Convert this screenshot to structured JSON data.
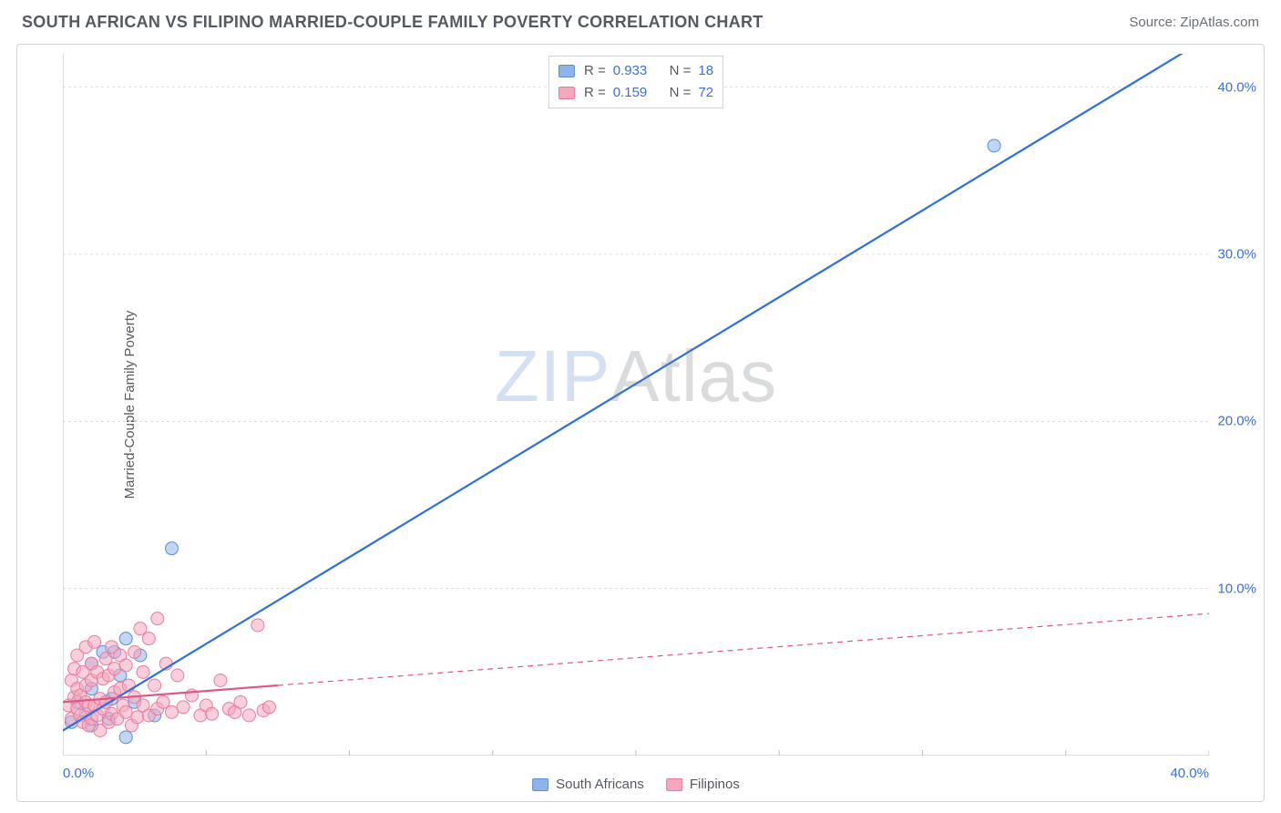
{
  "header": {
    "title": "SOUTH AFRICAN VS FILIPINO MARRIED-COUPLE FAMILY POVERTY CORRELATION CHART",
    "source_prefix": "Source: ",
    "source_name": "ZipAtlas.com"
  },
  "watermark": {
    "part1": "ZIP",
    "part2": "Atlas"
  },
  "chart": {
    "type": "scatter",
    "y_axis_label": "Married-Couple Family Poverty",
    "background_color": "#ffffff",
    "border_color": "#cfd3d8",
    "grid_color": "#d9dde1",
    "axis_color": "#b9bec4",
    "label_color": "#3a6fd8",
    "xlim": [
      0,
      40
    ],
    "ylim": [
      0,
      42
    ],
    "x_ticks": [
      0,
      5,
      10,
      15,
      20,
      25,
      30,
      35,
      40
    ],
    "x_tick_labels": [
      "0.0%",
      "",
      "",
      "",
      "",
      "",
      "",
      "",
      "40.0%"
    ],
    "y_ticks": [
      10,
      20,
      30,
      40
    ],
    "y_tick_labels": [
      "10.0%",
      "20.0%",
      "30.0%",
      "40.0%"
    ],
    "marker_radius": 7,
    "marker_opacity": 0.55,
    "line_width_solid": 2.2,
    "line_width_dashed": 1.2,
    "series": [
      {
        "name": "South Africans",
        "color_fill": "#8cb4e8",
        "color_stroke": "#5a8fd8",
        "line_color": "#2c6fe0",
        "r_value": "0.933",
        "n_value": "18",
        "trend_line": {
          "x1": 0,
          "y1": 1.5,
          "x2": 40,
          "y2": 43,
          "dashed_after_x": 40
        },
        "points": [
          [
            0.3,
            2.0
          ],
          [
            0.5,
            3.2
          ],
          [
            0.8,
            2.5
          ],
          [
            1.0,
            1.8
          ],
          [
            1.0,
            4.0
          ],
          [
            1.0,
            5.5
          ],
          [
            1.4,
            6.2
          ],
          [
            1.6,
            2.2
          ],
          [
            1.7,
            3.4
          ],
          [
            1.8,
            6.2
          ],
          [
            2.0,
            4.8
          ],
          [
            2.2,
            7.0
          ],
          [
            2.2,
            1.1
          ],
          [
            2.5,
            3.2
          ],
          [
            2.7,
            6.0
          ],
          [
            3.2,
            2.4
          ],
          [
            3.8,
            12.4
          ],
          [
            32.5,
            36.5
          ]
        ]
      },
      {
        "name": "Filipinos",
        "color_fill": "#f4a7bd",
        "color_stroke": "#e87ca0",
        "line_color": "#e25584",
        "r_value": "0.159",
        "n_value": "72",
        "trend_line": {
          "x1": 0,
          "y1": 3.2,
          "x2": 7.5,
          "y2": 4.2,
          "extend_to_x": 40,
          "extend_to_y": 8.5
        },
        "points": [
          [
            0.2,
            3.0
          ],
          [
            0.3,
            2.2
          ],
          [
            0.3,
            4.5
          ],
          [
            0.4,
            3.5
          ],
          [
            0.4,
            5.2
          ],
          [
            0.5,
            2.8
          ],
          [
            0.5,
            4.0
          ],
          [
            0.5,
            6.0
          ],
          [
            0.6,
            2.4
          ],
          [
            0.6,
            3.6
          ],
          [
            0.7,
            5.0
          ],
          [
            0.7,
            2.0
          ],
          [
            0.8,
            3.2
          ],
          [
            0.8,
            6.5
          ],
          [
            0.8,
            4.2
          ],
          [
            0.9,
            1.8
          ],
          [
            0.9,
            3.0
          ],
          [
            1.0,
            5.5
          ],
          [
            1.0,
            2.2
          ],
          [
            1.0,
            4.5
          ],
          [
            1.1,
            3.0
          ],
          [
            1.1,
            6.8
          ],
          [
            1.2,
            2.4
          ],
          [
            1.2,
            5.0
          ],
          [
            1.3,
            3.4
          ],
          [
            1.3,
            1.5
          ],
          [
            1.4,
            4.6
          ],
          [
            1.4,
            2.8
          ],
          [
            1.5,
            5.8
          ],
          [
            1.5,
            3.2
          ],
          [
            1.6,
            2.0
          ],
          [
            1.6,
            4.8
          ],
          [
            1.7,
            6.5
          ],
          [
            1.7,
            2.5
          ],
          [
            1.8,
            3.8
          ],
          [
            1.8,
            5.2
          ],
          [
            1.9,
            2.2
          ],
          [
            2.0,
            4.0
          ],
          [
            2.0,
            6.0
          ],
          [
            2.1,
            3.0
          ],
          [
            2.2,
            5.4
          ],
          [
            2.2,
            2.6
          ],
          [
            2.3,
            4.2
          ],
          [
            2.4,
            1.8
          ],
          [
            2.5,
            3.5
          ],
          [
            2.5,
            6.2
          ],
          [
            2.6,
            2.3
          ],
          [
            2.7,
            7.6
          ],
          [
            2.8,
            3.0
          ],
          [
            2.8,
            5.0
          ],
          [
            3.0,
            2.4
          ],
          [
            3.0,
            7.0
          ],
          [
            3.2,
            4.2
          ],
          [
            3.3,
            2.8
          ],
          [
            3.3,
            8.2
          ],
          [
            3.5,
            3.2
          ],
          [
            3.6,
            5.5
          ],
          [
            3.8,
            2.6
          ],
          [
            4.0,
            4.8
          ],
          [
            4.2,
            2.9
          ],
          [
            4.5,
            3.6
          ],
          [
            4.8,
            2.4
          ],
          [
            5.0,
            3.0
          ],
          [
            5.2,
            2.5
          ],
          [
            5.5,
            4.5
          ],
          [
            5.8,
            2.8
          ],
          [
            6.0,
            2.6
          ],
          [
            6.2,
            3.2
          ],
          [
            6.5,
            2.4
          ],
          [
            6.8,
            7.8
          ],
          [
            7.0,
            2.7
          ],
          [
            7.2,
            2.9
          ]
        ]
      }
    ],
    "legend_top": {
      "r_label": "R =",
      "n_label": "N ="
    },
    "legend_bottom": [
      {
        "label": "South Africans",
        "fill": "#8cb4e8",
        "stroke": "#5a8fd8"
      },
      {
        "label": "Filipinos",
        "fill": "#f4a7bd",
        "stroke": "#e87ca0"
      }
    ]
  }
}
